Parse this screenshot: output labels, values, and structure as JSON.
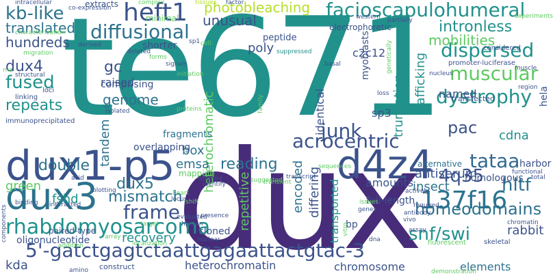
{
  "words": [
    {
      "text": "te671",
      "color": "#21918c"
    },
    {
      "text": "dux",
      "color": "#472c7a"
    },
    {
      "text": "dux1-p5",
      "color": "#3b528b"
    },
    {
      "text": "d4z4",
      "color": "#3b528b"
    },
    {
      "text": "dux3",
      "color": "#2c728e"
    },
    {
      "text": "5'-gatctgagtctaattgagaattactgtac-3",
      "color": "#3b528b"
    },
    {
      "text": "137f16",
      "color": "#2c728e"
    },
    {
      "text": "rhabdomyosarcoma",
      "color": "#21918c"
    },
    {
      "text": "facioscapulohumeral",
      "color": "#21918c"
    },
    {
      "text": "heft1",
      "color": "#3b528b"
    },
    {
      "text": "diffusional",
      "color": "#2c728e"
    },
    {
      "text": "kb-like",
      "color": "#2c728e"
    },
    {
      "text": "homeodomains",
      "color": "#2c728e"
    },
    {
      "text": "acrocentric",
      "color": "#3b528b"
    },
    {
      "text": "junk",
      "color": "#3b528b"
    },
    {
      "text": "dystrophy",
      "color": "#21918c"
    },
    {
      "text": "dispersed",
      "color": "#21918c"
    },
    {
      "text": "muscular",
      "color": "#5ec962"
    },
    {
      "text": "tataa",
      "color": "#31688e"
    },
    {
      "text": "frame",
      "color": "#3b528b"
    },
    {
      "text": "snf/swi",
      "color": "#21918c"
    },
    {
      "text": "hltf",
      "color": "#2c728e"
    },
    {
      "text": "4q35",
      "color": "#3b528b"
    },
    {
      "text": "fused",
      "color": "#21918c"
    },
    {
      "text": "reading",
      "color": "#2c728e"
    },
    {
      "text": "intronless",
      "color": "#21918c"
    },
    {
      "text": "mobilities",
      "color": "#5ec962"
    },
    {
      "text": "photobleaching",
      "color": "#b5de2b"
    },
    {
      "text": "translated",
      "color": "#2c728e"
    },
    {
      "text": "hundreds",
      "color": "#3b528b"
    },
    {
      "text": "dux4",
      "color": "#3b528b"
    },
    {
      "text": "gc",
      "color": "#3b528b"
    },
    {
      "text": "unusual",
      "color": "#3b528b"
    },
    {
      "text": "heterochromatic",
      "color": "#5ec962"
    },
    {
      "text": "repeats",
      "color": "#21918c"
    },
    {
      "text": "genome",
      "color": "#2c728e"
    },
    {
      "text": "pac",
      "color": "#3b528b"
    },
    {
      "text": "dux5",
      "color": "#2c728e"
    },
    {
      "text": "mismatch",
      "color": "#2c728e"
    },
    {
      "text": "recovery",
      "color": "#21918c"
    },
    {
      "text": "double",
      "color": "#2c728e"
    },
    {
      "text": "tandem",
      "color": "#2c728e"
    },
    {
      "text": "fshd",
      "color": "#21918c"
    },
    {
      "text": "green",
      "color": "#5ec962"
    },
    {
      "text": "kda",
      "color": "#3b528b"
    },
    {
      "text": "raised",
      "color": "#3b528b"
    },
    {
      "text": "comprising",
      "color": "#3b528b"
    },
    {
      "text": "box",
      "color": "#2c728e"
    },
    {
      "text": "emsa",
      "color": "#2c728e"
    },
    {
      "text": "heterochromatin",
      "color": "#3b528b"
    },
    {
      "text": "chromosome",
      "color": "#3b528b"
    },
    {
      "text": "elements",
      "color": "#2c728e"
    },
    {
      "text": "antiserum",
      "color": "#3b528b"
    },
    {
      "text": "insect",
      "color": "#2c728e"
    },
    {
      "text": "rabbit",
      "color": "#3b528b"
    },
    {
      "text": "homologous",
      "color": "#3b528b"
    },
    {
      "text": "cdna",
      "color": "#21918c"
    },
    {
      "text": "trafficking",
      "color": "#21918c"
    },
    {
      "text": "truncation",
      "color": "#21918c"
    },
    {
      "text": "identical",
      "color": "#3b528b"
    },
    {
      "text": "encoded",
      "color": "#2c728e"
    },
    {
      "text": "differing",
      "color": "#3b528b"
    },
    {
      "text": "transported",
      "color": "#21918c"
    },
    {
      "text": "repetitive",
      "color": "#5ec962"
    },
    {
      "text": "myoblasts",
      "color": "#3b528b"
    },
    {
      "text": "poly",
      "color": "#3b528b"
    },
    {
      "text": "c2c12",
      "color": "#3b528b"
    },
    {
      "text": "sp3",
      "color": "#3b528b"
    },
    {
      "text": "amounts",
      "color": "#3b528b"
    },
    {
      "text": "full-length",
      "color": "#3b528b"
    },
    {
      "text": "named",
      "color": "#3b528b"
    },
    {
      "text": "hela",
      "color": "#3b528b"
    },
    {
      "text": "harbor",
      "color": "#3b528b"
    },
    {
      "text": "alternative",
      "color": "#2c728e"
    },
    {
      "text": "overlapping",
      "color": "#3b528b"
    },
    {
      "text": "fragments",
      "color": "#2c728e"
    },
    {
      "text": "mapping",
      "color": "#5ec962"
    },
    {
      "text": "paired-type",
      "color": "#3b528b"
    },
    {
      "text": "oligonucleotide",
      "color": "#3b528b"
    },
    {
      "text": "cloned",
      "color": "#3b528b"
    },
    {
      "text": "bp",
      "color": "#3b528b"
    },
    {
      "text": "shorter",
      "color": "#3b528b"
    },
    {
      "text": "peptide",
      "color": "#3b528b"
    },
    {
      "text": "electrophoretic",
      "color": "#3b528b"
    },
    {
      "text": "extracts",
      "color": "#3b528b"
    },
    {
      "text": "minimal",
      "color": "#5ec962"
    },
    {
      "text": "transfected",
      "color": "#3b528b"
    },
    {
      "text": "promoter-luciferase",
      "color": "#3b528b"
    },
    {
      "text": "considered",
      "color": "#3b528b"
    },
    {
      "text": "experiments",
      "color": "#5ec962"
    },
    {
      "text": "western",
      "color": "#3b528b"
    },
    {
      "text": "partially",
      "color": "#3b528b"
    },
    {
      "text": "factor",
      "color": "#3b528b"
    },
    {
      "text": "tissues",
      "color": "#b5de2b"
    },
    {
      "text": "complex",
      "color": "#5ec962"
    },
    {
      "text": "intracellular",
      "color": "#3b528b"
    },
    {
      "text": "co-expression",
      "color": "#3b528b"
    },
    {
      "text": "characterization",
      "color": "#5ec962"
    },
    {
      "text": "migration",
      "color": "#5ec962"
    },
    {
      "text": "derived",
      "color": "#3b528b"
    },
    {
      "text": "forms",
      "color": "#5ec962"
    },
    {
      "text": "deleted",
      "color": "#3b528b"
    },
    {
      "text": "structural",
      "color": "#3b528b"
    },
    {
      "text": "linking",
      "color": "#3b528b"
    },
    {
      "text": "loci",
      "color": "#3b528b"
    },
    {
      "text": "immunoprecipitated",
      "color": "#3b528b"
    },
    {
      "text": "isolated",
      "color": "#3b528b"
    },
    {
      "text": "initiation",
      "color": "#5ec962"
    },
    {
      "text": "signals",
      "color": "#3b528b"
    },
    {
      "text": "sp1",
      "color": "#3b528b"
    },
    {
      "text": "cell",
      "color": "#5ec962"
    },
    {
      "text": "proteins",
      "color": "#5ec962"
    },
    {
      "text": "basal",
      "color": "#3b528b"
    },
    {
      "text": "suppressed",
      "color": "#21918c"
    },
    {
      "text": "nucleus",
      "color": "#3b528b"
    },
    {
      "text": "muscle",
      "color": "#3b528b"
    },
    {
      "text": "region",
      "color": "#3b528b"
    },
    {
      "text": "loss",
      "color": "#3b528b"
    },
    {
      "text": "transcript",
      "color": "#3b528b"
    },
    {
      "text": "transient",
      "color": "#5ec962"
    },
    {
      "text": "sequences",
      "color": "#5ec962"
    },
    {
      "text": "suggested",
      "color": "#5ec962"
    },
    {
      "text": "studied",
      "color": "#3b528b"
    },
    {
      "text": "identify",
      "color": "#3b528b"
    },
    {
      "text": "heart",
      "color": "#5ec962"
    },
    {
      "text": "locus",
      "color": "#3b528b"
    },
    {
      "text": "acid",
      "color": "#3b528b"
    },
    {
      "text": "blotting",
      "color": "#3b528b"
    },
    {
      "text": "binding",
      "color": "#3b528b"
    },
    {
      "text": "interacted",
      "color": "#3b528b"
    },
    {
      "text": "presence",
      "color": "#3b528b"
    },
    {
      "text": "target",
      "color": "#5ec962"
    },
    {
      "text": "evaluated",
      "color": "#3b528b"
    },
    {
      "text": "human",
      "color": "#3b528b"
    },
    {
      "text": "nuclear",
      "color": "#3b528b"
    },
    {
      "text": "localization",
      "color": "#5ec962"
    },
    {
      "text": "addition",
      "color": "#5ec962"
    },
    {
      "text": "amino",
      "color": "#3b528b"
    },
    {
      "text": "construct",
      "color": "#3b528b"
    },
    {
      "text": "array",
      "color": "#5ec962"
    },
    {
      "text": "components",
      "color": "#3b528b"
    },
    {
      "text": "dna",
      "color": "#3b528b"
    },
    {
      "text": "assay",
      "color": "#3b528b"
    },
    {
      "text": "demonstration",
      "color": "#5ec962"
    },
    {
      "text": "fluorescent",
      "color": "#5ec962"
    },
    {
      "text": "skeletal",
      "color": "#3b528b"
    },
    {
      "text": "chromatin",
      "color": "#3b528b"
    },
    {
      "text": "functional",
      "color": "#3b528b"
    },
    {
      "text": "total",
      "color": "#3b528b"
    },
    {
      "text": "antibody",
      "color": "#3b528b"
    },
    {
      "text": "actively",
      "color": "#3b528b"
    },
    {
      "text": "required",
      "color": "#3b528b"
    },
    {
      "text": "vivo",
      "color": "#3b528b"
    },
    {
      "text": "genes",
      "color": "#3b528b"
    },
    {
      "text": "shift",
      "color": "#5ec962"
    },
    {
      "text": "family",
      "color": "#5ec962"
    },
    {
      "text": "genetically",
      "color": "#5ec962"
    },
    {
      "text": "rna",
      "color": "#5ec962"
    },
    {
      "text": "vitro",
      "color": "#5ec962"
    },
    {
      "text": "issues",
      "color": "#5ec962"
    }
  ]
}
